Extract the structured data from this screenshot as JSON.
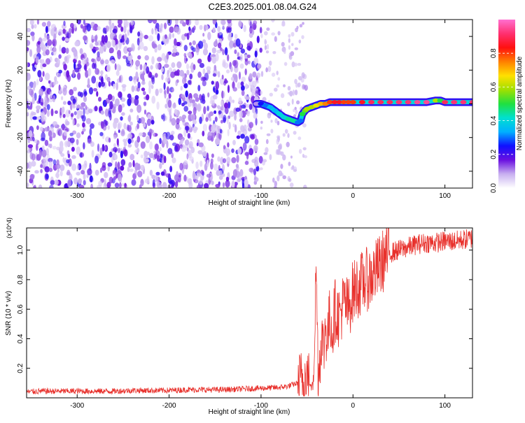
{
  "title": "C2E3.2025.001.08.04.G24",
  "colors": {
    "snr_line": "#e8312c",
    "track_dark": "#3a1fd8",
    "noise_light": "#cbb8f5",
    "noise_dark": "#5a16dd",
    "frame": "#000000"
  },
  "chart_data": [
    {
      "type": "heatmap",
      "name": "spectrogram",
      "xlabel": "Height of straight line (km)",
      "ylabel": "Frequency (Hz)",
      "xlim": [
        -355,
        130
      ],
      "ylim": [
        -50,
        50
      ],
      "xticks": [
        -300,
        -200,
        -100,
        0,
        100
      ],
      "xtick_labels": [
        "-300",
        "-200",
        "-100",
        "0",
        "100"
      ],
      "yticks": [
        -40,
        -20,
        0,
        20,
        40
      ],
      "ytick_labels": [
        "-40",
        "-20",
        "0",
        "20",
        "40"
      ],
      "colorbar": {
        "label": "Normalized spectral amplitude",
        "range": [
          0,
          1
        ],
        "ticks": [
          0.0,
          0.2,
          0.4,
          0.6,
          0.8
        ],
        "tick_labels": [
          "0.0",
          "0.2",
          "0.4",
          "0.6",
          "0.8"
        ],
        "colormap": [
          "#ffffff",
          "#c8b0f0",
          "#6a10e0",
          "#1010ff",
          "#00b0ff",
          "#00e0d0",
          "#20e040",
          "#a0e000",
          "#ffe000",
          "#ff8000",
          "#ff1010",
          "#ff3070",
          "#ff70d0"
        ]
      },
      "noise_region_x": [
        -355,
        -100
      ],
      "signal_track": {
        "x": [
          -105,
          -100,
          -95,
          -90,
          -85,
          -80,
          -75,
          -70,
          -65,
          -60,
          -57,
          -55,
          -52,
          -50,
          -45,
          -40,
          -35,
          -30,
          -25,
          -20,
          -15,
          -10,
          -5,
          0,
          10,
          20,
          30,
          40,
          50,
          60,
          70,
          80,
          90,
          95,
          100,
          110,
          120,
          130
        ],
        "y": [
          0,
          0,
          -1,
          -2,
          -4,
          -6,
          -8,
          -9,
          -10,
          -11,
          -10,
          -6,
          -4,
          -3,
          -2,
          -1,
          0,
          0,
          1,
          1,
          1,
          1,
          1,
          1,
          1,
          1,
          1,
          1,
          1,
          1,
          1,
          1,
          2,
          2,
          1,
          1,
          1,
          1
        ],
        "amplitude": [
          0.1,
          0.25,
          0.3,
          0.35,
          0.35,
          0.4,
          0.4,
          0.45,
          0.45,
          0.3,
          0.3,
          0.5,
          0.55,
          0.6,
          0.6,
          0.65,
          0.7,
          0.75,
          0.8,
          0.85,
          0.85,
          0.8,
          0.8,
          0.8,
          0.85,
          0.9,
          0.9,
          0.9,
          0.92,
          0.92,
          0.95,
          0.95,
          0.6,
          0.5,
          0.9,
          0.92,
          0.92,
          0.92
        ]
      }
    },
    {
      "type": "line",
      "name": "snr",
      "xlabel": "Height of straight line (km)",
      "ylabel": "SNR (10 * v/v)",
      "y_scale_label": "(x10^4)",
      "xlim": [
        -355,
        130
      ],
      "ylim": [
        0,
        1.15
      ],
      "xticks": [
        -300,
        -200,
        -100,
        0,
        100
      ],
      "xtick_labels": [
        "-300",
        "-200",
        "-100",
        "0",
        "100"
      ],
      "yticks": [
        0.2,
        0.4,
        0.6,
        0.8,
        1.0
      ],
      "ytick_labels": [
        "0.2",
        "0.4",
        "0.6",
        "0.8",
        "1.0"
      ],
      "series": [
        {
          "name": "SNR",
          "x": [
            -355,
            -340,
            -320,
            -300,
            -280,
            -260,
            -240,
            -220,
            -200,
            -180,
            -160,
            -140,
            -120,
            -100,
            -80,
            -70,
            -60,
            -55,
            -50,
            -45,
            -42,
            -40,
            -38,
            -36,
            -34,
            -32,
            -30,
            -28,
            -25,
            -22,
            -20,
            -15,
            -10,
            -5,
            0,
            5,
            10,
            15,
            20,
            25,
            30,
            35,
            40,
            50,
            60,
            70,
            80,
            90,
            100,
            110,
            120,
            130
          ],
          "y": [
            0.04,
            0.045,
            0.045,
            0.045,
            0.045,
            0.045,
            0.05,
            0.05,
            0.05,
            0.055,
            0.055,
            0.055,
            0.06,
            0.065,
            0.07,
            0.08,
            0.1,
            0.12,
            0.14,
            0.06,
            0.35,
            0.9,
            0.2,
            0.25,
            0.45,
            0.3,
            0.5,
            0.4,
            0.55,
            0.45,
            0.6,
            0.55,
            0.65,
            0.6,
            0.72,
            0.75,
            0.78,
            0.8,
            0.82,
            0.86,
            0.9,
            0.95,
            0.98,
            1.0,
            1.02,
            1.04,
            1.05,
            1.05,
            1.06,
            1.06,
            1.07,
            1.08
          ]
        }
      ]
    }
  ]
}
